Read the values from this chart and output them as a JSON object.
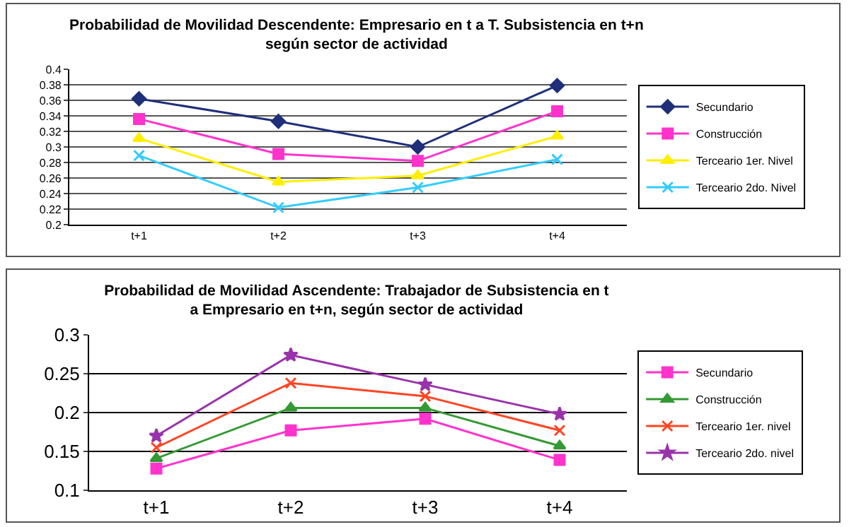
{
  "chart_data": [
    {
      "type": "line",
      "title": "Probabilidad de Movilidad Descendente: Empresario en t a T. Subsistencia en t+n\nsegún sector de actividad",
      "categories": [
        "t+1",
        "t+2",
        "t+3",
        "t+4"
      ],
      "ylim": [
        0.2,
        0.4
      ],
      "yticks": [
        0.2,
        0.22,
        0.24,
        0.26,
        0.28,
        0.3,
        0.32,
        0.34,
        0.36,
        0.38,
        0.4
      ],
      "grid": "y",
      "legend": "right",
      "series": [
        {
          "name": "Secundario",
          "color": "#1f2f7a",
          "marker": "diamond",
          "values": [
            0.362,
            0.333,
            0.3,
            0.379
          ]
        },
        {
          "name": "Construcción",
          "color": "#ff33cc",
          "marker": "square",
          "values": [
            0.336,
            0.291,
            0.282,
            0.346
          ]
        },
        {
          "name": "Terceario 1er. Nivel",
          "color": "#ffee00",
          "marker": "triangle",
          "values": [
            0.311,
            0.255,
            0.263,
            0.314
          ]
        },
        {
          "name": "Terceario 2do. Nivel",
          "color": "#33ccff",
          "marker": "cross",
          "values": [
            0.289,
            0.222,
            0.248,
            0.284
          ]
        }
      ]
    },
    {
      "type": "line",
      "title": "Probabilidad de Movilidad Ascendente: Trabajador de Subsistencia en t\na Empresario en t+n, según sector de actividad",
      "categories": [
        "t+1",
        "t+2",
        "t+3",
        "t+4"
      ],
      "ylim": [
        0.1,
        0.3
      ],
      "yticks": [
        0.1,
        0.15,
        0.2,
        0.25,
        0.3
      ],
      "grid": "y",
      "legend": "right",
      "series": [
        {
          "name": "Secundario",
          "color": "#ff33cc",
          "marker": "square",
          "values": [
            0.128,
            0.177,
            0.192,
            0.139
          ]
        },
        {
          "name": "Construcción",
          "color": "#339933",
          "marker": "triangle",
          "values": [
            0.141,
            0.206,
            0.206,
            0.157
          ]
        },
        {
          "name": "Terceario 1er. nivel",
          "color": "#ff4422",
          "marker": "cross",
          "values": [
            0.155,
            0.238,
            0.221,
            0.177
          ]
        },
        {
          "name": "Terceario 2do. nivel",
          "color": "#9933aa",
          "marker": "star",
          "values": [
            0.17,
            0.274,
            0.236,
            0.198
          ]
        }
      ]
    }
  ]
}
